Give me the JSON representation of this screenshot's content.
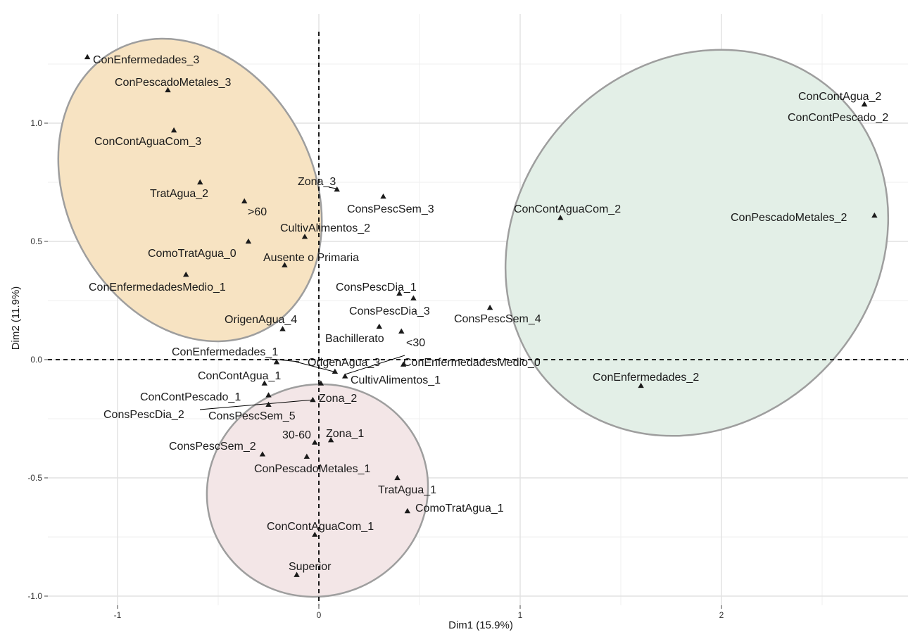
{
  "chart_data": {
    "type": "scatter",
    "title": "",
    "xlabel": "Dim1 (15.9%)",
    "ylabel": "Dim2 (11.9%)",
    "xlim": [
      -1.34,
      2.93
    ],
    "ylim": [
      -1.03,
      1.4
    ],
    "grid": true,
    "x_ticks": [
      -1,
      0,
      1,
      2
    ],
    "x_tick_labels": [
      "-1",
      "0",
      "1",
      "2"
    ],
    "y_ticks": [
      -1.0,
      -0.5,
      0.0,
      0.5,
      1.0
    ],
    "y_tick_labels": [
      "-1.0",
      "-0.5",
      "0.0",
      "0.5",
      "1.0"
    ],
    "marker": "triangle",
    "marker_color": "#1a1a1a",
    "points": [
      {
        "label": "ConEnfermedades_3",
        "x": -1.15,
        "y": 1.28
      },
      {
        "label": "ConPescadoMetales_3",
        "x": -0.75,
        "y": 1.14
      },
      {
        "label": "ConContAguaCom_3",
        "x": -0.72,
        "y": 0.97
      },
      {
        "label": "TratAgua_2",
        "x": -0.59,
        "y": 0.75
      },
      {
        "label": ">60",
        "x": -0.37,
        "y": 0.67
      },
      {
        "label": "CultivAlimentos_2",
        "x": -0.07,
        "y": 0.52
      },
      {
        "label": "ComoTratAgua_0",
        "x": -0.35,
        "y": 0.5
      },
      {
        "label": "Ausente o Primaria",
        "x": -0.17,
        "y": 0.4
      },
      {
        "label": "ConEnfermedadesMedio_1",
        "x": -0.66,
        "y": 0.36
      },
      {
        "label": "OrigenAgua_4",
        "x": -0.18,
        "y": 0.13
      },
      {
        "label": "Zona_3",
        "x": 0.09,
        "y": 0.72
      },
      {
        "label": "ConsPescSem_3",
        "x": 0.32,
        "y": 0.69
      },
      {
        "label": "ConsPescDia_1",
        "x": 0.47,
        "y": 0.26
      },
      {
        "label": "ConsPescDia_3",
        "x": 0.4,
        "y": 0.28
      },
      {
        "label": "Bachillerato",
        "x": 0.3,
        "y": 0.14
      },
      {
        "label": "<30",
        "x": 0.41,
        "y": 0.12
      },
      {
        "label": "ConsPescSem_4",
        "x": 0.85,
        "y": 0.22
      },
      {
        "label": "ConContAguaCom_2",
        "x": 1.2,
        "y": 0.6
      },
      {
        "label": "ConContAgua_2",
        "x": 2.71,
        "y": 1.08
      },
      {
        "label": "ConContPescado_2",
        "x": 2.71,
        "y": 1.08
      },
      {
        "label": "ConPescadoMetales_2",
        "x": 2.76,
        "y": 0.61
      },
      {
        "label": "ConEnfermedades_2",
        "x": 1.6,
        "y": -0.11
      },
      {
        "label": "ConEnfermedadesMedio_0",
        "x": 0.42,
        "y": -0.02
      },
      {
        "label": "ConEnfermedades_1",
        "x": -0.21,
        "y": -0.01
      },
      {
        "label": "OrigenAgua_3",
        "x": 0.08,
        "y": -0.05
      },
      {
        "label": "CultivAlimentos_1",
        "x": 0.13,
        "y": -0.07
      },
      {
        "label": "ConContAgua_1",
        "x": -0.27,
        "y": -0.1
      },
      {
        "label": "Zona_2",
        "x": 0.01,
        "y": -0.1
      },
      {
        "label": "ConContPescado_1",
        "x": -0.25,
        "y": -0.15
      },
      {
        "label": "ConsPescSem_5",
        "x": -0.25,
        "y": -0.19
      },
      {
        "label": "ConsPescDia_2",
        "x": -0.03,
        "y": -0.17
      },
      {
        "label": "Zona_1",
        "x": 0.06,
        "y": -0.34
      },
      {
        "label": "30-60",
        "x": -0.02,
        "y": -0.35
      },
      {
        "label": "ConsPescSem_2",
        "x": -0.28,
        "y": -0.4
      },
      {
        "label": "ConPescadoMetales_1",
        "x": -0.06,
        "y": -0.41
      },
      {
        "label": "TratAgua_1",
        "x": 0.39,
        "y": -0.5
      },
      {
        "label": "ComoTratAgua_1",
        "x": 0.44,
        "y": -0.64
      },
      {
        "label": "ConContAguaCom_1",
        "x": -0.02,
        "y": -0.74
      },
      {
        "label": "Superior",
        "x": -0.11,
        "y": -0.91
      }
    ],
    "ellipses": [
      {
        "fill": "#f7e3c2",
        "stroke": "#9e9e9e"
      },
      {
        "fill": "#e3efe7",
        "stroke": "#9e9e9e"
      },
      {
        "fill": "#f3e6e7",
        "stroke": "#9e9e9e"
      }
    ],
    "reference_lines": {
      "x": 0,
      "y": 0,
      "style": "dashed"
    }
  }
}
